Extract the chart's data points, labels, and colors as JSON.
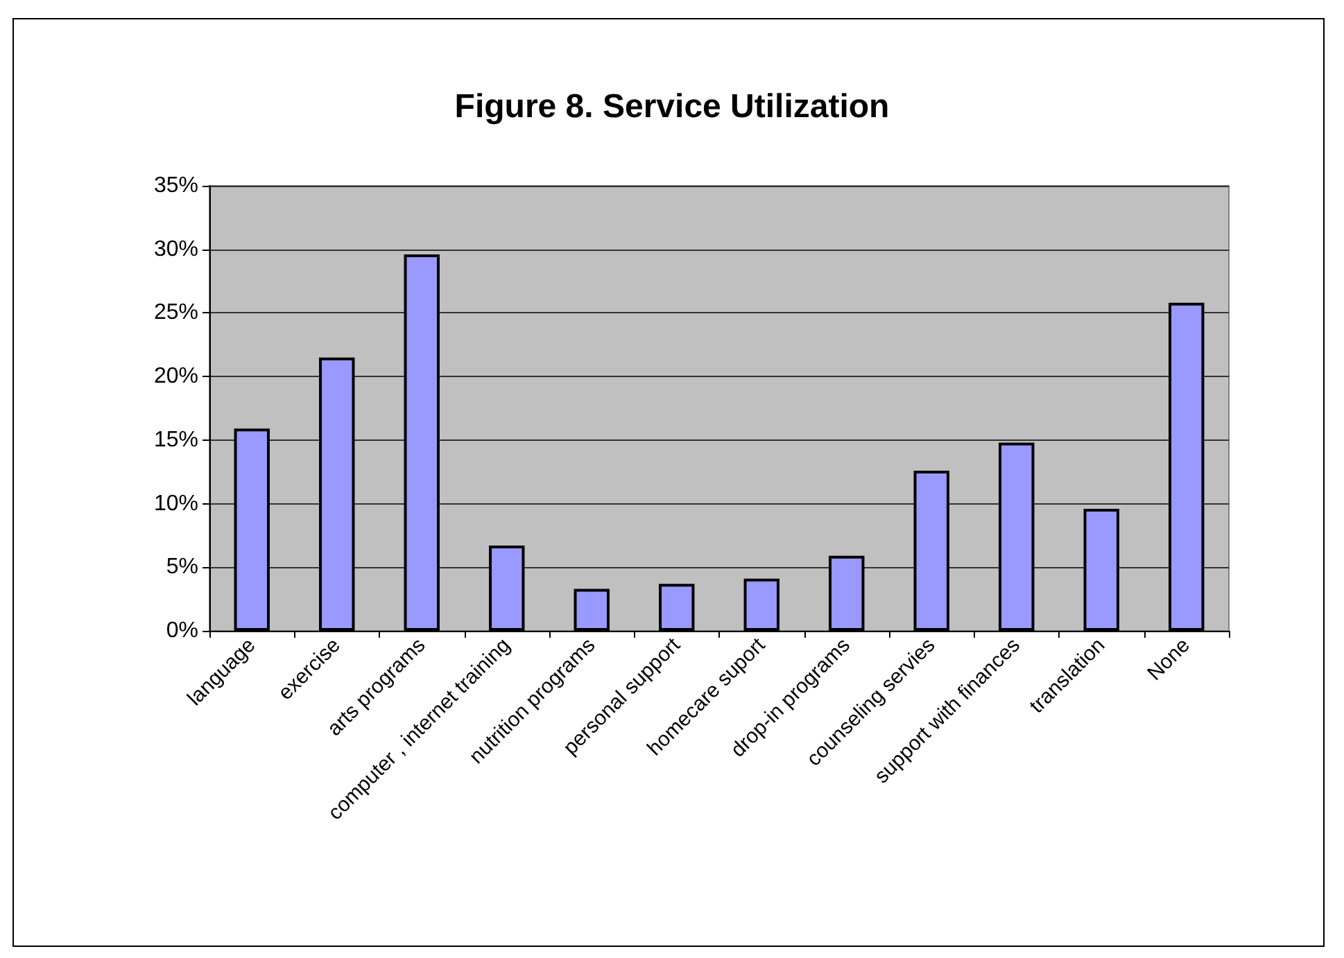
{
  "chart_data": {
    "type": "bar",
    "title": "Figure 8. Service Utilization",
    "categories": [
      "language",
      "exercise",
      "arts programs",
      "computer , internet training",
      "nutrition programs",
      "personal support",
      "homecare suport",
      "drop-in programs",
      "counseling servies",
      "support with finances",
      "translation",
      "None"
    ],
    "values": [
      15.9,
      21.5,
      29.6,
      6.7,
      3.3,
      3.7,
      4.1,
      5.9,
      12.6,
      14.8,
      9.6,
      25.8
    ],
    "color": "#9999ff",
    "ylim": [
      0,
      35
    ],
    "yticks": [
      {
        "value": 0,
        "label": "0%"
      },
      {
        "value": 5,
        "label": "5%"
      },
      {
        "value": 10,
        "label": "10%"
      },
      {
        "value": 15,
        "label": "15%"
      },
      {
        "value": 20,
        "label": "20%"
      },
      {
        "value": 25,
        "label": "25%"
      },
      {
        "value": 30,
        "label": "30%"
      },
      {
        "value": 35,
        "label": "35%"
      }
    ],
    "grid": "y"
  }
}
